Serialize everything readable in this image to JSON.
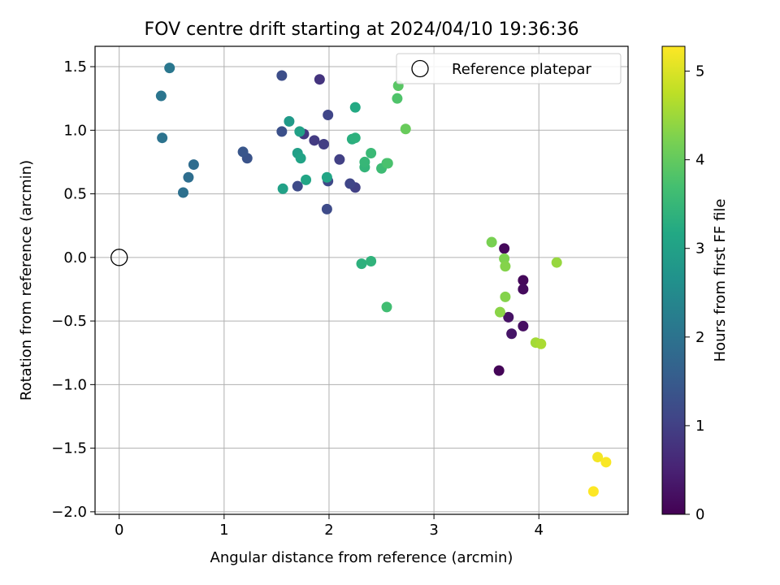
{
  "chart_data": {
    "type": "scatter",
    "title": "FOV centre drift starting at 2024/04/10 19:36:36",
    "xlabel": "Angular distance from reference (arcmin)",
    "ylabel": "Rotation from reference (arcmin)",
    "xlim": [
      -0.23,
      4.85
    ],
    "ylim": [
      -2.02,
      1.66
    ],
    "xticks": [
      0,
      1,
      2,
      3,
      4
    ],
    "xtick_labels": [
      "0",
      "1",
      "2",
      "3",
      "4"
    ],
    "yticks": [
      1.5,
      1.0,
      0.5,
      0.0,
      -0.5,
      -1.0,
      -1.5,
      -2.0
    ],
    "ytick_labels": [
      "1.5",
      "1.0",
      "0.5",
      "0.0",
      "−0.5",
      "−1.0",
      "−1.5",
      "−2.0"
    ],
    "grid": true,
    "legend": {
      "placement": "top-right",
      "label": "Reference platepar"
    },
    "reference_point": {
      "x": 0,
      "y": 0
    },
    "colorbar": {
      "label": "Hours from first FF file",
      "colormap": "viridis",
      "range": [
        0,
        5.28
      ],
      "ticks": [
        0,
        1,
        2,
        3,
        4,
        5
      ],
      "tick_labels": [
        "0",
        "1",
        "2",
        "3",
        "4",
        "5"
      ]
    },
    "points": [
      {
        "x": 3.67,
        "y": 0.07,
        "hours": 0.1
      },
      {
        "x": 3.62,
        "y": -0.89,
        "hours": 0.05
      },
      {
        "x": 3.85,
        "y": -0.18,
        "hours": 0.1
      },
      {
        "x": 3.85,
        "y": -0.25,
        "hours": 0.15
      },
      {
        "x": 3.85,
        "y": -0.54,
        "hours": 0.2
      },
      {
        "x": 3.71,
        "y": -0.47,
        "hours": 0.25
      },
      {
        "x": 3.74,
        "y": -0.6,
        "hours": 0.3
      },
      {
        "x": 1.91,
        "y": 1.4,
        "hours": 0.8
      },
      {
        "x": 1.76,
        "y": 0.97,
        "hours": 0.85
      },
      {
        "x": 1.86,
        "y": 0.92,
        "hours": 0.9
      },
      {
        "x": 1.95,
        "y": 0.89,
        "hours": 0.95
      },
      {
        "x": 2.1,
        "y": 0.77,
        "hours": 1.0
      },
      {
        "x": 2.25,
        "y": 0.55,
        "hours": 1.0
      },
      {
        "x": 2.2,
        "y": 0.58,
        "hours": 1.1
      },
      {
        "x": 1.99,
        "y": 1.12,
        "hours": 1.1
      },
      {
        "x": 1.99,
        "y": 0.6,
        "hours": 1.15
      },
      {
        "x": 1.98,
        "y": 0.38,
        "hours": 1.2
      },
      {
        "x": 1.7,
        "y": 0.56,
        "hours": 1.2
      },
      {
        "x": 1.55,
        "y": 1.43,
        "hours": 1.25
      },
      {
        "x": 1.55,
        "y": 0.99,
        "hours": 1.3
      },
      {
        "x": 1.22,
        "y": 0.78,
        "hours": 1.35
      },
      {
        "x": 1.18,
        "y": 0.83,
        "hours": 1.4
      },
      {
        "x": 0.71,
        "y": 0.73,
        "hours": 1.85
      },
      {
        "x": 0.66,
        "y": 0.63,
        "hours": 1.9
      },
      {
        "x": 0.61,
        "y": 0.51,
        "hours": 1.95
      },
      {
        "x": 0.41,
        "y": 0.94,
        "hours": 2.0
      },
      {
        "x": 0.4,
        "y": 1.27,
        "hours": 2.05
      },
      {
        "x": 0.48,
        "y": 1.49,
        "hours": 2.1
      },
      {
        "x": 1.62,
        "y": 1.07,
        "hours": 2.85
      },
      {
        "x": 1.7,
        "y": 0.82,
        "hours": 2.95
      },
      {
        "x": 1.72,
        "y": 0.99,
        "hours": 3.0
      },
      {
        "x": 1.56,
        "y": 0.54,
        "hours": 3.0
      },
      {
        "x": 1.73,
        "y": 0.78,
        "hours": 3.05
      },
      {
        "x": 1.78,
        "y": 0.61,
        "hours": 3.1
      },
      {
        "x": 1.98,
        "y": 0.63,
        "hours": 3.1
      },
      {
        "x": 2.25,
        "y": 1.18,
        "hours": 3.2
      },
      {
        "x": 2.22,
        "y": 0.93,
        "hours": 3.3
      },
      {
        "x": 2.25,
        "y": 0.94,
        "hours": 3.35
      },
      {
        "x": 2.31,
        "y": -0.05,
        "hours": 3.35
      },
      {
        "x": 2.4,
        "y": -0.03,
        "hours": 3.4
      },
      {
        "x": 2.34,
        "y": 0.71,
        "hours": 3.45
      },
      {
        "x": 2.34,
        "y": 0.75,
        "hours": 3.5
      },
      {
        "x": 2.4,
        "y": 0.82,
        "hours": 3.55
      },
      {
        "x": 2.5,
        "y": 0.7,
        "hours": 3.6
      },
      {
        "x": 2.55,
        "y": 0.74,
        "hours": 3.7
      },
      {
        "x": 2.56,
        "y": 0.74,
        "hours": 3.75
      },
      {
        "x": 2.55,
        "y": -0.39,
        "hours": 3.65
      },
      {
        "x": 2.65,
        "y": 1.25,
        "hours": 3.8
      },
      {
        "x": 2.66,
        "y": 1.35,
        "hours": 3.9
      },
      {
        "x": 2.73,
        "y": 1.01,
        "hours": 4.05
      },
      {
        "x": 3.55,
        "y": 0.12,
        "hours": 4.2
      },
      {
        "x": 3.67,
        "y": -0.01,
        "hours": 4.25
      },
      {
        "x": 3.68,
        "y": -0.07,
        "hours": 4.3
      },
      {
        "x": 3.68,
        "y": -0.31,
        "hours": 4.3
      },
      {
        "x": 3.63,
        "y": -0.43,
        "hours": 4.35
      },
      {
        "x": 4.17,
        "y": -0.04,
        "hours": 4.45
      },
      {
        "x": 3.97,
        "y": -0.67,
        "hours": 4.55
      },
      {
        "x": 4.02,
        "y": -0.68,
        "hours": 4.6
      },
      {
        "x": 4.56,
        "y": -1.57,
        "hours": 5.2
      },
      {
        "x": 4.64,
        "y": -1.61,
        "hours": 5.25
      },
      {
        "x": 4.52,
        "y": -1.84,
        "hours": 5.28
      }
    ]
  }
}
